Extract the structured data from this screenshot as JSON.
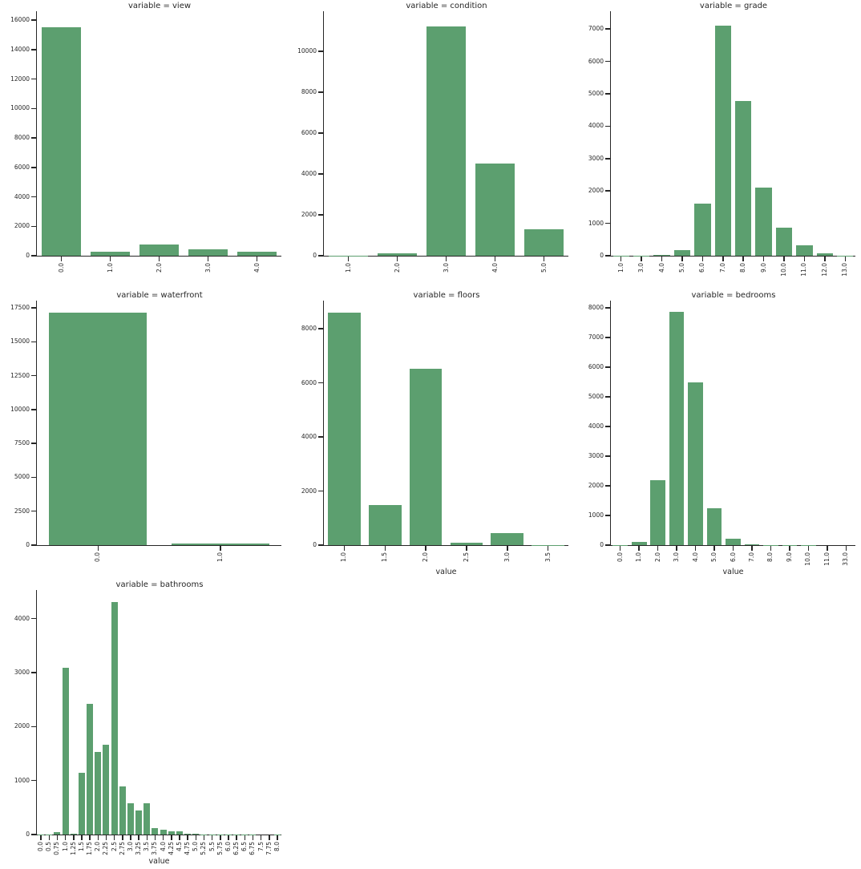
{
  "figure": {
    "background": "#ffffff",
    "bar_color": "#5c9f6f",
    "axis_color": "#262626",
    "text_color": "#262626",
    "columns": 3,
    "grid_lines": false,
    "legend": "none"
  },
  "chart_data": [
    {
      "type": "bar",
      "title": "variable = view",
      "categories": [
        "0.0",
        "1.0",
        "2.0",
        "3.0",
        "4.0"
      ],
      "values": [
        15490,
        270,
        760,
        420,
        260
      ],
      "yticks": [
        0,
        2000,
        4000,
        6000,
        8000,
        10000,
        12000,
        14000,
        16000
      ],
      "ylim": [
        0,
        16600
      ],
      "xlabel": "",
      "ylabel": ""
    },
    {
      "type": "bar",
      "title": "variable = condition",
      "categories": [
        "1.0",
        "2.0",
        "3.0",
        "4.0",
        "5.0"
      ],
      "values": [
        20,
        120,
        11200,
        4490,
        1310
      ],
      "yticks": [
        0,
        2000,
        4000,
        6000,
        8000,
        10000
      ],
      "ylim": [
        0,
        11950
      ],
      "xlabel": "",
      "ylabel": ""
    },
    {
      "type": "bar",
      "title": "variable = grade",
      "categories": [
        "1.0",
        "3.0",
        "4.0",
        "5.0",
        "6.0",
        "7.0",
        "8.0",
        "9.0",
        "10.0",
        "11.0",
        "12.0",
        "13.0"
      ],
      "values": [
        2,
        3,
        25,
        180,
        1600,
        7100,
        4780,
        2110,
        870,
        320,
        70,
        10
      ],
      "yticks": [
        0,
        1000,
        2000,
        3000,
        4000,
        5000,
        6000,
        7000
      ],
      "ylim": [
        0,
        7550
      ],
      "xlabel": "",
      "ylabel": ""
    },
    {
      "type": "bar",
      "title": "variable = waterfront",
      "categories": [
        "0.0",
        "1.0"
      ],
      "values": [
        17150,
        120
      ],
      "yticks": [
        0,
        2500,
        5000,
        7500,
        10000,
        12500,
        15000,
        17500
      ],
      "ylim": [
        0,
        18030
      ],
      "xlabel": "",
      "ylabel": ""
    },
    {
      "type": "bar",
      "title": "variable = floors",
      "categories": [
        "1.0",
        "1.5",
        "2.0",
        "2.5",
        "3.0",
        "3.5"
      ],
      "values": [
        8610,
        1480,
        6520,
        100,
        450,
        8
      ],
      "yticks": [
        0,
        2000,
        4000,
        6000,
        8000
      ],
      "ylim": [
        0,
        9040
      ],
      "xlabel": "value",
      "ylabel": ""
    },
    {
      "type": "bar",
      "title": "variable = bedrooms",
      "categories": [
        "0.0",
        "1.0",
        "2.0",
        "3.0",
        "4.0",
        "5.0",
        "6.0",
        "7.0",
        "8.0",
        "9.0",
        "10.0",
        "11.0",
        "33.0"
      ],
      "values": [
        10,
        110,
        2190,
        7860,
        5480,
        1240,
        220,
        30,
        10,
        5,
        3,
        1,
        1
      ],
      "yticks": [
        0,
        1000,
        2000,
        3000,
        4000,
        5000,
        6000,
        7000,
        8000
      ],
      "ylim": [
        0,
        8250
      ],
      "xlabel": "value",
      "ylabel": ""
    },
    {
      "type": "bar",
      "title": "variable = bathrooms",
      "categories": [
        "0.0",
        "0.5",
        "0.75",
        "1.0",
        "1.25",
        "1.5",
        "1.75",
        "2.0",
        "2.25",
        "2.5",
        "2.75",
        "3.0",
        "3.25",
        "3.5",
        "3.75",
        "4.0",
        "4.25",
        "4.5",
        "4.75",
        "5.0",
        "5.25",
        "5.5",
        "5.75",
        "6.0",
        "6.25",
        "6.5",
        "6.75",
        "7.5",
        "7.75",
        "8.0"
      ],
      "values": [
        5,
        3,
        45,
        3090,
        8,
        1150,
        2420,
        1530,
        1660,
        4310,
        890,
        580,
        440,
        575,
        120,
        95,
        55,
        65,
        12,
        10,
        7,
        5,
        3,
        4,
        2,
        2,
        2,
        1,
        1,
        2
      ],
      "yticks": [
        0,
        1000,
        2000,
        3000,
        4000
      ],
      "ylim": [
        0,
        4530
      ],
      "xlabel": "value",
      "ylabel": ""
    }
  ]
}
